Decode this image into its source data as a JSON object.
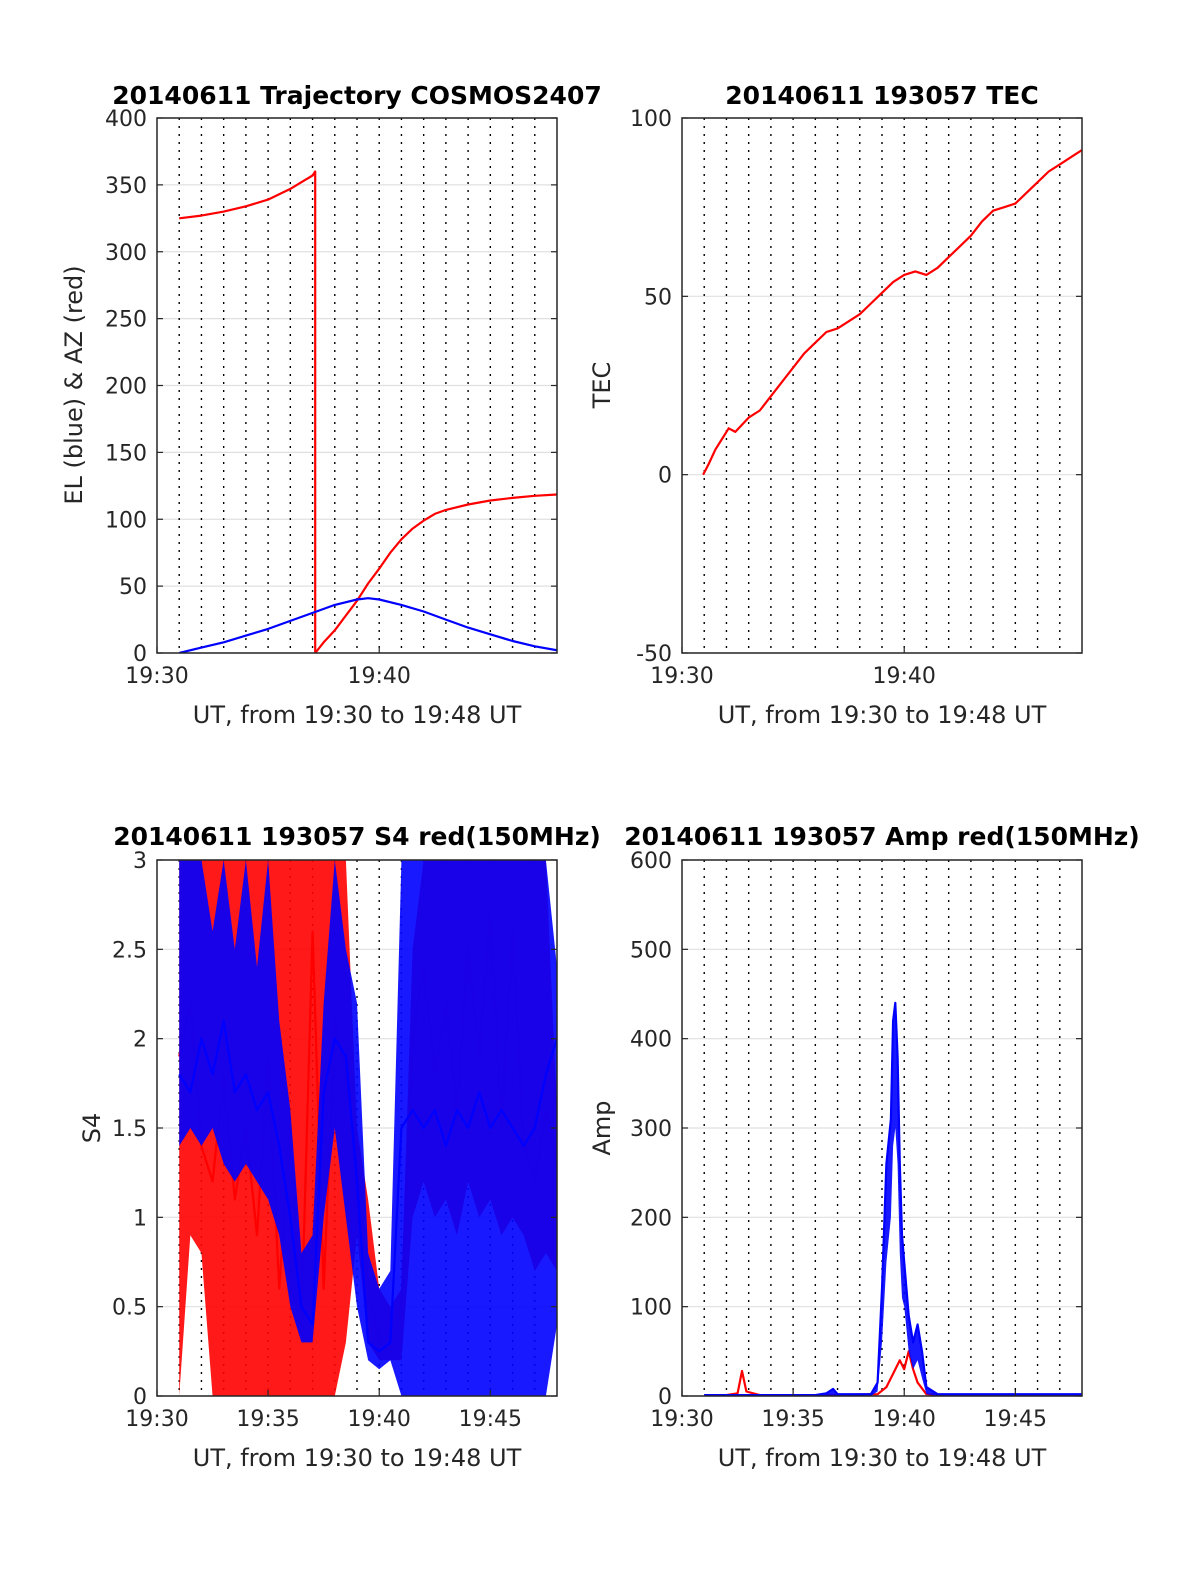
{
  "figure": {
    "background": "#ffffff",
    "grid_color": "#e0e0e0",
    "dotted_line_color": "#000000",
    "colors": {
      "red": "#ff0000",
      "blue": "#0000ff"
    }
  },
  "chart_data": [
    {
      "id": "trajectory",
      "type": "line",
      "title": "20140611 Trajectory COSMOS2407",
      "xlabel": "UT, from 19:30 to 19:48 UT",
      "ylabel": "EL (blue) & AZ (red)",
      "xlim": [
        0,
        18
      ],
      "ylim": [
        0,
        400
      ],
      "xticks": [
        {
          "v": 0,
          "label": "19:30"
        },
        {
          "v": 10,
          "label": "19:40"
        }
      ],
      "yticks": [
        0,
        50,
        100,
        150,
        200,
        250,
        300,
        350,
        400
      ],
      "grid": "horizontal",
      "dotted_verticals_minutes": [
        1.0,
        2.0,
        3.0,
        4.0,
        5.0,
        6.0,
        7.0,
        8.0,
        9.0,
        10.0,
        11.0,
        12.0,
        13.0,
        14.0,
        15.0,
        16.0,
        17.0
      ],
      "series": [
        {
          "name": "AZ (red)",
          "color": "#ff0000",
          "x": [
            1.0,
            2.0,
            3.0,
            4.0,
            5.0,
            6.0,
            6.5,
            7.0,
            7.12,
            7.12,
            7.5,
            8.0,
            8.5,
            9.0,
            9.5,
            10.0,
            10.5,
            11.0,
            11.5,
            12.0,
            12.5,
            13.0,
            14.0,
            15.0,
            16.0,
            17.0,
            18.0
          ],
          "y": [
            325,
            327,
            330,
            334,
            339,
            347,
            352,
            357,
            360,
            0,
            8,
            17,
            28,
            39,
            52,
            63,
            75,
            85,
            93,
            99,
            104,
            107,
            111,
            114,
            116,
            117.5,
            118.5
          ]
        },
        {
          "name": "EL (blue)",
          "color": "#0000ff",
          "x": [
            1.0,
            2.0,
            3.0,
            4.0,
            5.0,
            6.0,
            7.0,
            8.0,
            9.0,
            9.5,
            10.0,
            11.0,
            12.0,
            13.0,
            14.0,
            15.0,
            16.0,
            17.0,
            18.0
          ],
          "y": [
            0,
            4,
            8,
            13,
            18,
            24,
            30,
            36,
            40,
            41,
            40,
            36,
            31,
            25,
            19,
            14,
            9,
            5,
            2
          ]
        }
      ]
    },
    {
      "id": "tec",
      "type": "line",
      "title": "20140611 193057 TEC",
      "xlabel": "UT, from 19:30 to 19:48 UT",
      "ylabel": "TEC",
      "xlim": [
        0,
        18
      ],
      "ylim": [
        -50,
        100
      ],
      "xticks": [
        {
          "v": 0,
          "label": "19:30"
        },
        {
          "v": 10,
          "label": "19:40"
        }
      ],
      "yticks": [
        -50,
        0,
        50,
        100
      ],
      "grid": "horizontal",
      "dotted_verticals_minutes": [
        1.0,
        2.0,
        3.0,
        4.0,
        5.0,
        6.0,
        7.0,
        8.0,
        9.0,
        10.0,
        11.0,
        12.0,
        13.0,
        14.0,
        15.0,
        16.0,
        17.0
      ],
      "series": [
        {
          "name": "TEC",
          "color": "#ff0000",
          "x": [
            0.95,
            1.2,
            1.5,
            1.8,
            2.1,
            2.4,
            2.7,
            3.0,
            3.5,
            4.0,
            4.5,
            5.0,
            5.5,
            6.0,
            6.5,
            7.0,
            7.5,
            8.0,
            8.5,
            9.0,
            9.5,
            10.0,
            10.5,
            11.0,
            11.5,
            12.0,
            12.5,
            13.0,
            13.5,
            14.0,
            14.5,
            15.0,
            15.5,
            16.0,
            16.5,
            17.0,
            17.5,
            18.0
          ],
          "y": [
            0,
            3,
            7,
            10,
            13,
            12,
            14,
            16,
            18,
            22,
            26,
            30,
            34,
            37,
            40,
            41,
            43,
            45,
            48,
            51,
            54,
            56,
            57,
            56,
            58,
            61,
            64,
            67,
            71,
            74,
            75,
            76,
            79,
            82,
            85,
            87,
            89,
            91
          ]
        }
      ]
    },
    {
      "id": "s4",
      "type": "line",
      "title": "20140611 193057 S4 red(150MHz)",
      "xlabel": "UT, from 19:30 to 19:48 UT",
      "ylabel": "S4",
      "xlim": [
        0,
        18
      ],
      "ylim": [
        0,
        3
      ],
      "xticks": [
        {
          "v": 0,
          "label": "19:30"
        },
        {
          "v": 5,
          "label": "19:35"
        },
        {
          "v": 10,
          "label": "19:40"
        },
        {
          "v": 15,
          "label": "19:45"
        }
      ],
      "yticks": [
        0,
        0.5,
        1,
        1.5,
        2,
        2.5,
        3
      ],
      "yticklabels": [
        "0",
        "0.5",
        "1",
        "1.5",
        "2",
        "2.5",
        "3"
      ],
      "grid": "horizontal",
      "dotted_verticals_minutes": [
        1.0,
        2.0,
        3.0,
        4.0,
        5.0,
        6.0,
        7.0,
        8.0,
        9.0,
        10.0,
        11.0,
        12.0,
        13.0,
        14.0,
        15.0,
        16.0,
        17.0
      ],
      "series": [
        {
          "name": "red (150MHz)",
          "color": "#ff0000",
          "x": [
            1.0,
            1.5,
            2.0,
            2.5,
            3.0,
            3.5,
            4.0,
            4.5,
            5.0,
            5.5,
            6.0,
            6.5,
            7.0,
            7.5,
            8.0,
            8.5,
            9.0,
            9.5,
            10.0,
            10.5,
            11.0,
            11.5,
            12.0,
            12.5,
            13.0,
            13.5,
            14.0,
            14.5,
            15.0,
            15.5,
            16.0,
            16.5,
            17.0,
            17.5,
            18.0
          ],
          "y": [
            1.9,
            2.2,
            1.4,
            1.2,
            1.8,
            1.1,
            1.5,
            0.9,
            1.9,
            0.6,
            1.5,
            0.4,
            2.6,
            0.6,
            2.1,
            1.8,
            1.3,
            0.6,
            0.3,
            0.4,
            0.5,
            2.0,
            2.4,
            1.8,
            2.2,
            1.6,
            2.5,
            1.9,
            2.7,
            1.5,
            2.6,
            1.4,
            1.2,
            1.6,
            1.3
          ],
          "lo": [
            0,
            0.9,
            0.8,
            0,
            0,
            0,
            0,
            0,
            0,
            0,
            0,
            0,
            0,
            0,
            0,
            0.3,
            0.9,
            0.3,
            0.2,
            0.2,
            0.2,
            1.0,
            1.2,
            1.0,
            1.1,
            0.9,
            1.2,
            1.0,
            1.1,
            0.9,
            1.0,
            0.9,
            0.7,
            0.8,
            0.7
          ],
          "hi": [
            3.0,
            3.0,
            3.0,
            3.0,
            3.0,
            3.0,
            3.0,
            3.0,
            3.0,
            3.0,
            3.0,
            3.0,
            3.0,
            3.0,
            3.0,
            3.0,
            1.5,
            1.1,
            0.6,
            0.5,
            0.6,
            2.5,
            3.0,
            3.0,
            3.0,
            3.0,
            3.0,
            3.0,
            3.0,
            3.0,
            3.0,
            3.0,
            3.0,
            3.0,
            1.6
          ]
        },
        {
          "name": "blue",
          "color": "#0000ff",
          "x": [
            1.0,
            1.5,
            2.0,
            2.5,
            3.0,
            3.5,
            4.0,
            4.5,
            5.0,
            5.5,
            6.0,
            6.5,
            7.0,
            7.5,
            8.0,
            8.5,
            9.0,
            9.5,
            10.0,
            10.5,
            11.0,
            11.5,
            12.0,
            12.5,
            13.0,
            13.5,
            14.0,
            14.5,
            15.0,
            15.5,
            16.0,
            16.5,
            17.0,
            17.5,
            18.0
          ],
          "y": [
            1.8,
            1.7,
            2.0,
            1.8,
            2.1,
            1.7,
            1.8,
            1.6,
            1.7,
            1.4,
            1.0,
            0.5,
            0.4,
            1.7,
            2.0,
            1.9,
            1.2,
            0.3,
            0.25,
            0.3,
            1.5,
            1.6,
            1.5,
            1.6,
            1.4,
            1.6,
            1.5,
            1.7,
            1.5,
            1.6,
            1.5,
            1.4,
            1.5,
            1.8,
            2.0
          ],
          "lo": [
            1.4,
            1.5,
            1.4,
            1.5,
            1.3,
            1.2,
            1.3,
            1.2,
            1.1,
            0.9,
            0.5,
            0.3,
            0.3,
            1.0,
            1.5,
            1.0,
            0.5,
            0.2,
            0.15,
            0.2,
            0,
            0,
            0,
            0,
            0,
            0,
            0,
            0,
            0,
            0,
            0,
            0,
            0,
            0,
            0.4
          ],
          "hi": [
            3.0,
            3.0,
            3.0,
            2.6,
            3.0,
            2.5,
            3.0,
            2.4,
            3.0,
            2.1,
            1.6,
            0.8,
            0.9,
            2.2,
            3.0,
            2.5,
            2.2,
            0.8,
            0.6,
            0.7,
            3.0,
            3.0,
            3.0,
            3.0,
            3.0,
            3.0,
            3.0,
            3.0,
            3.0,
            3.0,
            3.0,
            3.0,
            3.0,
            3.0,
            2.4
          ]
        }
      ]
    },
    {
      "id": "amp",
      "type": "line",
      "title": "20140611 193057 Amp red(150MHz)",
      "xlabel": "UT, from 19:30 to 19:48 UT",
      "ylabel": "Amp",
      "xlim": [
        0,
        18
      ],
      "ylim": [
        0,
        600
      ],
      "xticks": [
        {
          "v": 0,
          "label": "19:30"
        },
        {
          "v": 5,
          "label": "19:35"
        },
        {
          "v": 10,
          "label": "19:40"
        },
        {
          "v": 15,
          "label": "19:45"
        }
      ],
      "yticks": [
        0,
        100,
        200,
        300,
        400,
        500,
        600
      ],
      "grid": "horizontal",
      "dotted_verticals_minutes": [
        1.0,
        2.0,
        3.0,
        4.0,
        5.0,
        6.0,
        7.0,
        8.0,
        9.0,
        10.0,
        11.0,
        12.0,
        13.0,
        14.0,
        15.0,
        16.0,
        17.0
      ],
      "series": [
        {
          "name": "red (150MHz)",
          "color": "#ff0000",
          "x": [
            1.0,
            2.0,
            2.5,
            2.7,
            2.9,
            3.5,
            6.0,
            8.8,
            9.2,
            9.5,
            9.8,
            10.0,
            10.2,
            10.4,
            10.6,
            11.0,
            12.0,
            18.0
          ],
          "y": [
            1,
            1,
            3,
            28,
            5,
            1,
            1,
            2,
            10,
            25,
            40,
            30,
            50,
            30,
            15,
            2,
            1,
            1
          ]
        },
        {
          "name": "blue",
          "color": "#0000ff",
          "x": [
            1.0,
            3.0,
            6.0,
            6.5,
            6.8,
            7.0,
            8.5,
            8.8,
            9.0,
            9.2,
            9.4,
            9.5,
            9.6,
            9.7,
            9.8,
            9.9,
            10.0,
            10.2,
            10.4,
            10.6,
            10.8,
            11.0,
            11.5,
            14.0,
            18.0
          ],
          "y": [
            1,
            1,
            1,
            3,
            8,
            2,
            2,
            15,
            120,
            260,
            310,
            420,
            440,
            380,
            260,
            180,
            150,
            90,
            60,
            80,
            50,
            10,
            2,
            2,
            2
          ],
          "lo": [
            0,
            0,
            0,
            0,
            0,
            0,
            0,
            5,
            60,
            150,
            200,
            280,
            300,
            260,
            160,
            110,
            100,
            50,
            30,
            40,
            20,
            2,
            0,
            0,
            0
          ]
        }
      ]
    }
  ]
}
